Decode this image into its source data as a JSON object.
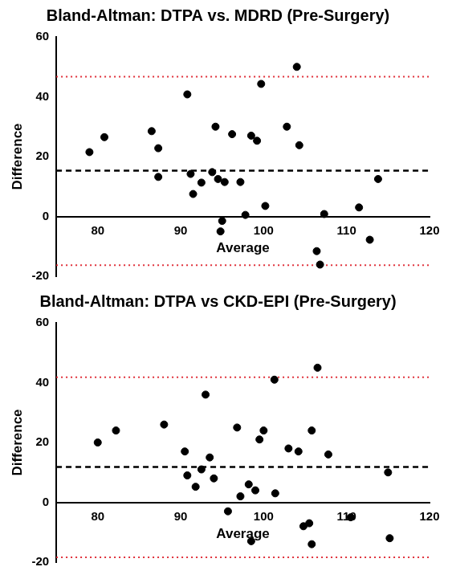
{
  "chart_data": [
    {
      "type": "scatter",
      "title": "Bland-Altman: DTPA vs. MDRD (Pre-Surgery)",
      "x_label": "Average",
      "y_label": "Difference",
      "x": [
        79,
        80.8,
        86.5,
        87.3,
        87.3,
        90.8,
        91.2,
        91.5,
        92.5,
        93.8,
        94.2,
        94.5,
        94.8,
        95,
        95.3,
        96.2,
        97.2,
        97.8,
        98.5,
        99.2,
        99.7,
        100.2,
        102.8,
        104,
        104.3,
        106.4,
        106.8,
        107.3,
        111.5,
        112.8,
        113.8
      ],
      "values": [
        21.5,
        26.5,
        28.5,
        22.8,
        13.2,
        40.8,
        14.2,
        7.5,
        11.3,
        14.8,
        30,
        12.5,
        -5,
        -1.5,
        11.5,
        27.5,
        11.5,
        0.5,
        27,
        25.3,
        44.3,
        3.5,
        30,
        50,
        23.8,
        -11.6,
        -16.1,
        0.8,
        3,
        -7.8,
        12.5
      ],
      "color": "#000000",
      "marker": "circle",
      "mean_difference": 15.3,
      "limits_of_agreement": [
        -16.3,
        46.7
      ],
      "mean_color": "#000000",
      "limits_color": "#e0303a",
      "xlim": [
        75,
        120
      ],
      "xticks": [
        80,
        90,
        100,
        110,
        120
      ],
      "ylim": [
        -20,
        60
      ],
      "yticks": [
        -20,
        0,
        20,
        40,
        60
      ],
      "grid": false
    },
    {
      "type": "scatter",
      "title": "Bland-Altman: DTPA vs CKD-EPI (Pre-Surgery)",
      "x_label": "Average",
      "y_label": "Difference",
      "x": [
        80,
        82.2,
        88,
        90.5,
        90.8,
        91.8,
        92.5,
        93,
        93.5,
        94,
        95.7,
        96.8,
        97.2,
        98.2,
        98.5,
        99,
        99.5,
        100,
        101.3,
        101.4,
        103,
        104.2,
        104.8,
        105.5,
        105.8,
        105.8,
        106.5,
        107.8,
        110.5,
        115,
        115.2
      ],
      "values": [
        20,
        24,
        26,
        17,
        9,
        5.2,
        11,
        36,
        15,
        8,
        -3,
        25,
        2,
        6,
        -13,
        4,
        21,
        24,
        41,
        3,
        18,
        17,
        -8,
        -7,
        24,
        -14,
        45,
        16,
        -5,
        10,
        -12
      ],
      "color": "#000000",
      "marker": "circle",
      "mean_difference": 11.8,
      "limits_of_agreement": [
        -18.4,
        41.8
      ],
      "mean_color": "#000000",
      "limits_color": "#e0303a",
      "xlim": [
        75,
        120
      ],
      "xticks": [
        80,
        90,
        100,
        110,
        120
      ],
      "ylim": [
        -20,
        60
      ],
      "yticks": [
        -20,
        0,
        20,
        40,
        60
      ],
      "grid": false
    }
  ]
}
